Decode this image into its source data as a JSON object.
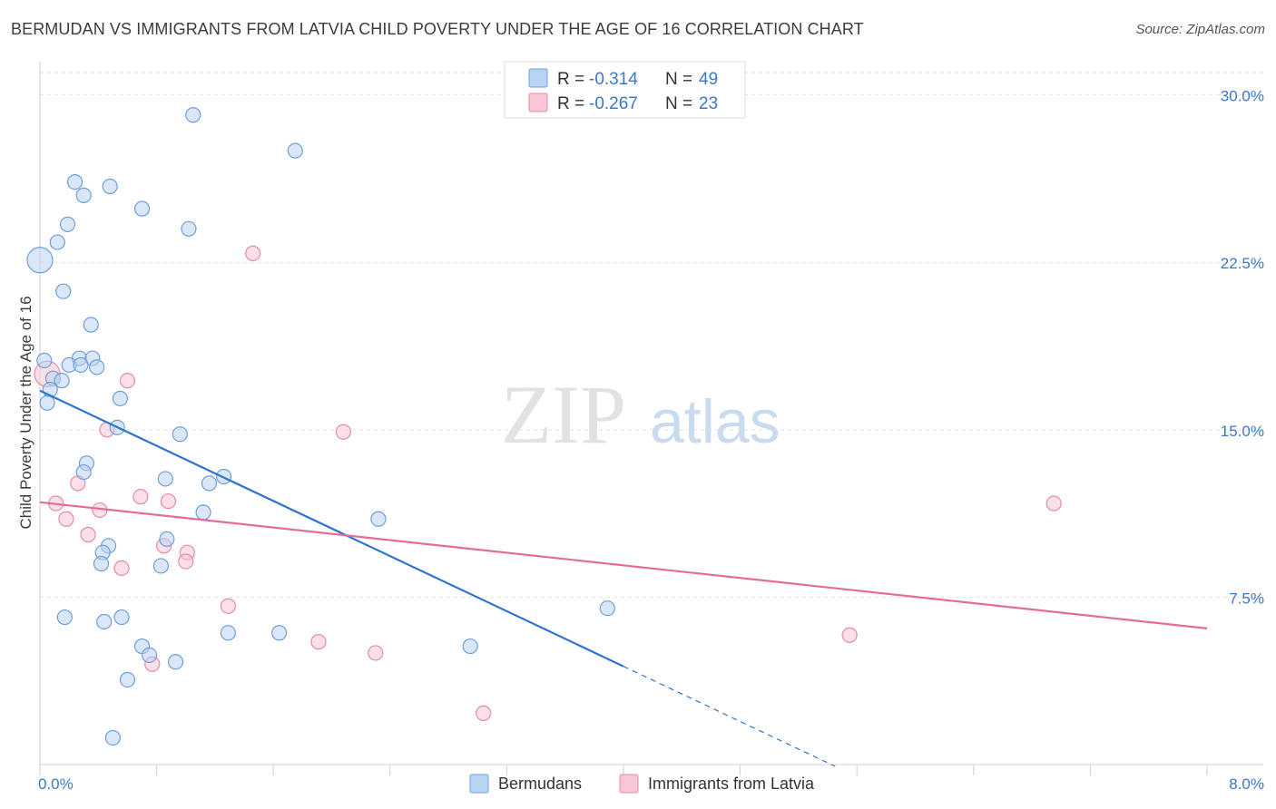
{
  "header": {
    "title": "BERMUDAN VS IMMIGRANTS FROM LATVIA CHILD POVERTY UNDER THE AGE OF 16 CORRELATION CHART",
    "source": "Source: ZipAtlas.com"
  },
  "watermark": {
    "zip": "ZIP",
    "atlas": "atlas"
  },
  "colors": {
    "blue_fill": "#b9d3f3",
    "blue_stroke": "#6f9fd8",
    "blue_line": "#2f74d0",
    "pink_fill": "#f8c6d6",
    "pink_stroke": "#e68aa9",
    "pink_line": "#e46d98",
    "grid": "#e2e2e2",
    "tick_text": "#3a78c9"
  },
  "legend": {
    "rows": [
      {
        "r_label": "R =",
        "r_value": "-0.314",
        "n_label": "N =",
        "n_value": "49"
      },
      {
        "r_label": "R =",
        "r_value": "-0.267",
        "n_label": "N =",
        "n_value": "23"
      }
    ]
  },
  "bottom_legend": {
    "items": [
      "Bermudans",
      "Immigrants from Latvia"
    ]
  },
  "chart_data": {
    "type": "scatter",
    "title": "BERMUDAN VS IMMIGRANTS FROM LATVIA CHILD POVERTY UNDER THE AGE OF 16 CORRELATION CHART",
    "xlabel": "",
    "ylabel": "Child Poverty Under the Age of 16",
    "xlim": [
      0,
      8.0
    ],
    "ylim": [
      0,
      31.0
    ],
    "x_tick_labels": [
      "0.0%",
      "8.0%"
    ],
    "y_ticks": [
      7.5,
      15.0,
      22.5,
      30.0
    ],
    "y_tick_labels": [
      "7.5%",
      "15.0%",
      "22.5%",
      "30.0%"
    ],
    "grid": true,
    "legend_placement": "top-center",
    "series": [
      {
        "name": "Bermudans",
        "color": "#6f9fd8",
        "points": [
          [
            1.05,
            29.1
          ],
          [
            1.75,
            27.5
          ],
          [
            0.24,
            26.1
          ],
          [
            0.3,
            25.5
          ],
          [
            0.48,
            25.9
          ],
          [
            0.7,
            24.9
          ],
          [
            1.02,
            24.0
          ],
          [
            0.19,
            24.2
          ],
          [
            0.12,
            23.4
          ],
          [
            0.0,
            22.6
          ],
          [
            0.16,
            21.2
          ],
          [
            0.35,
            19.7
          ],
          [
            0.27,
            18.2
          ],
          [
            0.36,
            18.2
          ],
          [
            0.03,
            18.1
          ],
          [
            0.2,
            17.9
          ],
          [
            0.28,
            17.9
          ],
          [
            0.39,
            17.8
          ],
          [
            0.09,
            17.3
          ],
          [
            0.15,
            17.2
          ],
          [
            0.07,
            16.8
          ],
          [
            0.05,
            16.2
          ],
          [
            0.55,
            16.4
          ],
          [
            0.53,
            15.1
          ],
          [
            0.96,
            14.8
          ],
          [
            0.32,
            13.5
          ],
          [
            0.3,
            13.1
          ],
          [
            0.86,
            12.8
          ],
          [
            1.26,
            12.9
          ],
          [
            1.16,
            12.6
          ],
          [
            1.12,
            11.3
          ],
          [
            2.32,
            11.0
          ],
          [
            0.87,
            10.1
          ],
          [
            0.47,
            9.8
          ],
          [
            0.43,
            9.5
          ],
          [
            0.42,
            9.0
          ],
          [
            0.83,
            8.9
          ],
          [
            3.89,
            7.0
          ],
          [
            0.17,
            6.6
          ],
          [
            0.44,
            6.4
          ],
          [
            0.56,
            6.6
          ],
          [
            1.29,
            5.9
          ],
          [
            1.64,
            5.9
          ],
          [
            0.7,
            5.3
          ],
          [
            0.75,
            4.9
          ],
          [
            2.95,
            5.3
          ],
          [
            0.93,
            4.6
          ],
          [
            0.6,
            3.8
          ],
          [
            0.5,
            1.2
          ]
        ]
      },
      {
        "name": "Immigrants from Latvia",
        "color": "#e68aa9",
        "points": [
          [
            0.05,
            17.5
          ],
          [
            1.46,
            22.9
          ],
          [
            0.6,
            17.2
          ],
          [
            0.46,
            15.0
          ],
          [
            2.08,
            14.9
          ],
          [
            0.26,
            12.6
          ],
          [
            0.69,
            12.0
          ],
          [
            0.88,
            11.8
          ],
          [
            0.11,
            11.7
          ],
          [
            0.41,
            11.4
          ],
          [
            0.18,
            11.0
          ],
          [
            0.33,
            10.3
          ],
          [
            0.85,
            9.8
          ],
          [
            1.01,
            9.5
          ],
          [
            1.0,
            9.1
          ],
          [
            0.56,
            8.8
          ],
          [
            1.29,
            7.1
          ],
          [
            6.95,
            11.7
          ],
          [
            5.55,
            5.8
          ],
          [
            1.91,
            5.5
          ],
          [
            2.3,
            5.0
          ],
          [
            0.77,
            4.5
          ],
          [
            3.04,
            2.3
          ]
        ]
      }
    ],
    "trendlines": [
      {
        "series": "Bermudans",
        "x0": 0.0,
        "y0": 16.75,
        "x1": 4.0,
        "y1": 4.4,
        "dashed_to_x": 5.45
      },
      {
        "series": "Immigrants from Latvia",
        "x0": 0.0,
        "y0": 11.75,
        "x1": 8.0,
        "y1": 6.1
      }
    ]
  }
}
